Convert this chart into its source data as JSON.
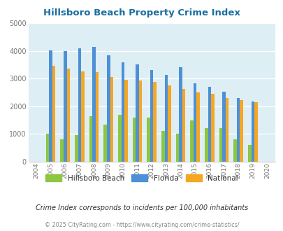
{
  "title": "Hillsboro Beach Property Crime Index",
  "years": [
    "2004",
    "2005",
    "2006",
    "2007",
    "2008",
    "2009",
    "2010",
    "2011",
    "2012",
    "2013",
    "2014",
    "2015",
    "2016",
    "2017",
    "2018",
    "2019",
    "2020"
  ],
  "hillsboro": [
    0,
    1000,
    800,
    950,
    1650,
    1350,
    1700,
    1600,
    1600,
    1100,
    1000,
    1500,
    1200,
    1200,
    800,
    600,
    0
  ],
  "florida": [
    0,
    4020,
    3980,
    4080,
    4150,
    3850,
    3580,
    3520,
    3300,
    3130,
    3400,
    2820,
    2700,
    2520,
    2310,
    2160,
    0
  ],
  "national": [
    0,
    3450,
    3350,
    3270,
    3220,
    3050,
    2960,
    2940,
    2880,
    2750,
    2620,
    2490,
    2460,
    2290,
    2230,
    2150,
    0
  ],
  "ylim": [
    0,
    5000
  ],
  "yticks": [
    0,
    1000,
    2000,
    3000,
    4000,
    5000
  ],
  "color_hillsboro": "#8dc63f",
  "color_florida": "#4d90d5",
  "color_national": "#f5a623",
  "background_chart": "#deeef5",
  "title_color": "#1a6ea0",
  "legend_label_hillsboro": "Hillsboro Beach",
  "legend_label_florida": "Florida",
  "legend_label_national": "National",
  "footnote1": "Crime Index corresponds to incidents per 100,000 inhabitants",
  "footnote2": "© 2025 CityRating.com - https://www.cityrating.com/crime-statistics/",
  "bar_width": 0.22
}
